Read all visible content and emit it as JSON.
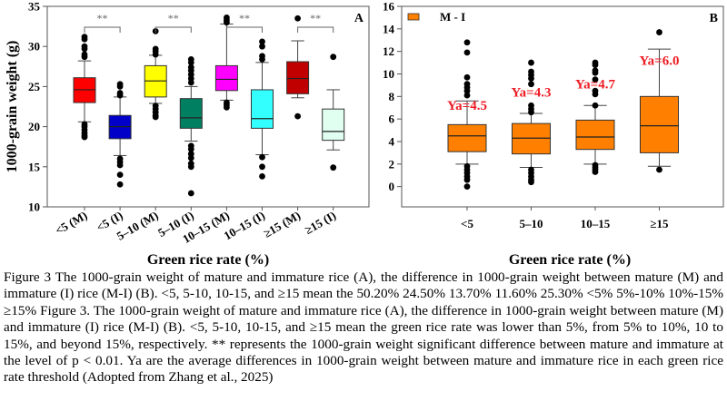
{
  "chart_data": [
    {
      "type": "box",
      "panel_label": "A",
      "title": "",
      "xlabel": "Green rice rate (%)",
      "ylabel": "1000-grain weight (g)",
      "ylim": [
        10,
        35
      ],
      "yticks": [
        10,
        15,
        20,
        25,
        30,
        35
      ],
      "grid": false,
      "categories": [
        "<5 (M)",
        "<5 (I)",
        "5–10 (M)",
        "5–10 (I)",
        "10–15 (M)",
        "10–15 (I)",
        "≥15 (M)",
        "≥15 (I)"
      ],
      "boxes": [
        {
          "category": "<5 (M)",
          "color": "#ff0000",
          "whisker_low": 20.6,
          "q1": 23.0,
          "median": 24.6,
          "q3": 26.1,
          "whisker_high": 28.2,
          "outliers": [
            31.2,
            30.9,
            30.0,
            29.7,
            29.0,
            28.7,
            20.3,
            20.0,
            19.6,
            19.2,
            18.9,
            18.7
          ]
        },
        {
          "category": "<5 (I)",
          "color": "#0000c8",
          "whisker_low": 16.4,
          "q1": 18.5,
          "median": 20.0,
          "q3": 21.4,
          "whisker_high": 23.7,
          "outliers": [
            25.3,
            25.0,
            24.2,
            23.9,
            16.0,
            15.6,
            15.2,
            14.0,
            12.8
          ]
        },
        {
          "category": "5–10 (M)",
          "color": "#ffff00",
          "whisker_low": 22.9,
          "q1": 23.7,
          "median": 25.7,
          "q3": 27.6,
          "whisker_high": 28.9,
          "outliers": [
            31.9,
            29.7,
            29.4,
            29.0,
            22.6,
            22.2,
            21.8,
            21.4,
            21.2
          ]
        },
        {
          "category": "5–10 (I)",
          "color": "#008060",
          "whisker_low": 18.2,
          "q1": 19.8,
          "median": 21.1,
          "q3": 23.5,
          "whisker_high": 25.0,
          "outliers": [
            28.4,
            28.0,
            27.4,
            27.0,
            26.5,
            26.0,
            25.5,
            17.6,
            17.2,
            16.6,
            16.1,
            15.4,
            15.0,
            11.7
          ]
        },
        {
          "category": "10–15 (M)",
          "color": "#ff00ff",
          "whisker_low": 23.3,
          "q1": 24.5,
          "median": 25.9,
          "q3": 27.6,
          "whisker_high": 32.8,
          "outliers": [
            33.6,
            33.3,
            33.0,
            23.0,
            22.7,
            22.4
          ]
        },
        {
          "category": "10–15 (I)",
          "color": "#33ffff",
          "whisker_low": 16.5,
          "q1": 19.8,
          "median": 21.0,
          "q3": 24.6,
          "whisker_high": 28.0,
          "outliers": [
            30.6,
            30.0,
            28.8,
            28.4,
            16.2,
            15.0,
            13.8
          ]
        },
        {
          "category": "≥15 (M)",
          "color": "#c00000",
          "whisker_low": 23.6,
          "q1": 24.1,
          "median": 26.0,
          "q3": 28.1,
          "whisker_high": 30.7,
          "outliers": [
            33.5,
            21.3
          ]
        },
        {
          "category": "≥15 (I)",
          "color": "#e0fff0",
          "whisker_low": 17.1,
          "q1": 18.3,
          "median": 19.4,
          "q3": 22.2,
          "whisker_high": 24.6,
          "outliers": [
            28.7,
            14.9
          ]
        }
      ],
      "annotations": [
        {
          "pair": [
            "<5 (M)",
            "<5 (I)"
          ],
          "text": "**"
        },
        {
          "pair": [
            "5–10 (M)",
            "5–10 (I)"
          ],
          "text": "**"
        },
        {
          "pair": [
            "10–15 (M)",
            "10–15 (I)"
          ],
          "text": "**"
        },
        {
          "pair": [
            "≥15 (M)",
            "≥15 (I)"
          ],
          "text": "**"
        }
      ]
    },
    {
      "type": "box",
      "panel_label": "B",
      "title": "",
      "xlabel": "Green rice rate (%)",
      "ylabel": "",
      "ylim": [
        -1.8,
        16
      ],
      "yticks": [
        0,
        2,
        4,
        6,
        8,
        10,
        12,
        14,
        16
      ],
      "grid": false,
      "legend": {
        "placement": "top-left",
        "entries": [
          {
            "label": "M - I",
            "color": "#ff8000"
          }
        ]
      },
      "categories": [
        "<5",
        "5–10",
        "10–15",
        "≥15"
      ],
      "boxes": [
        {
          "category": "<5",
          "color": "#ff8000",
          "whisker_low": 2.0,
          "q1": 3.1,
          "median": 4.5,
          "q3": 5.5,
          "whisker_high": 7.6,
          "outliers": [
            12.8,
            11.9,
            9.7,
            9.1,
            8.8,
            8.5,
            8.1,
            1.8,
            1.5,
            1.2,
            0.9,
            0.6,
            0.0
          ]
        },
        {
          "category": "5–10",
          "color": "#ff8000",
          "whisker_low": 1.7,
          "q1": 2.9,
          "median": 4.3,
          "q3": 5.6,
          "whisker_high": 6.5,
          "outliers": [
            11.0,
            10.2,
            9.9,
            9.6,
            9.1,
            7.2,
            6.9,
            6.6,
            1.5,
            1.2,
            0.9,
            0.6,
            0.4
          ]
        },
        {
          "category": "10–15",
          "color": "#ff8000",
          "whisker_low": 2.0,
          "q1": 3.3,
          "median": 4.4,
          "q3": 5.9,
          "whisker_high": 7.2,
          "outliers": [
            11.0,
            10.8,
            10.3,
            10.1,
            9.5,
            8.5,
            8.2,
            7.2,
            1.9,
            1.7,
            1.5,
            1.3
          ]
        },
        {
          "category": "≥15",
          "color": "#ff8000",
          "whisker_low": 1.8,
          "q1": 3.0,
          "median": 5.4,
          "q3": 8.0,
          "whisker_high": 12.2,
          "outliers": [
            13.7,
            1.5
          ]
        }
      ],
      "annotations": [
        {
          "category": "<5",
          "text": "Ya=4.5",
          "y": 6.8
        },
        {
          "category": "5–10",
          "text": "Ya=4.3",
          "y": 8.0
        },
        {
          "category": "10–15",
          "text": "Ya=4.7",
          "y": 8.7
        },
        {
          "category": "≥15",
          "text": "Ya=6.0",
          "y": 10.8
        }
      ]
    }
  ],
  "caption": "Figure 3 The 1000-grain weight of mature and immature rice (A), the difference in 1000-grain weight between mature (M) and immature (I) rice (M-I) (B). <5, 5-10, 10-15, and ≥15 mean the 50.20% 24.50% 13.70% 11.60% 25.30% <5% 5%-10% 10%-15% ≥15% Figure 3. The 1000-grain weight of mature and immature rice (A), the difference in 1000-grain weight between mature (M) and immature (I) rice (M-I) (B). <5, 5-10, 10-15, and ≥15 mean the green rice rate was lower than 5%, from 5% to 10%, 10 to 15%, and beyond 15%, respectively. ** represents the 1000-grain weight significant difference between mature and immature at the level of p < 0.01. Ya are the average differences in 1000-grain weight between mature and immature rice in each green rice rate threshold (Adopted from Zhang et al., 2025)"
}
